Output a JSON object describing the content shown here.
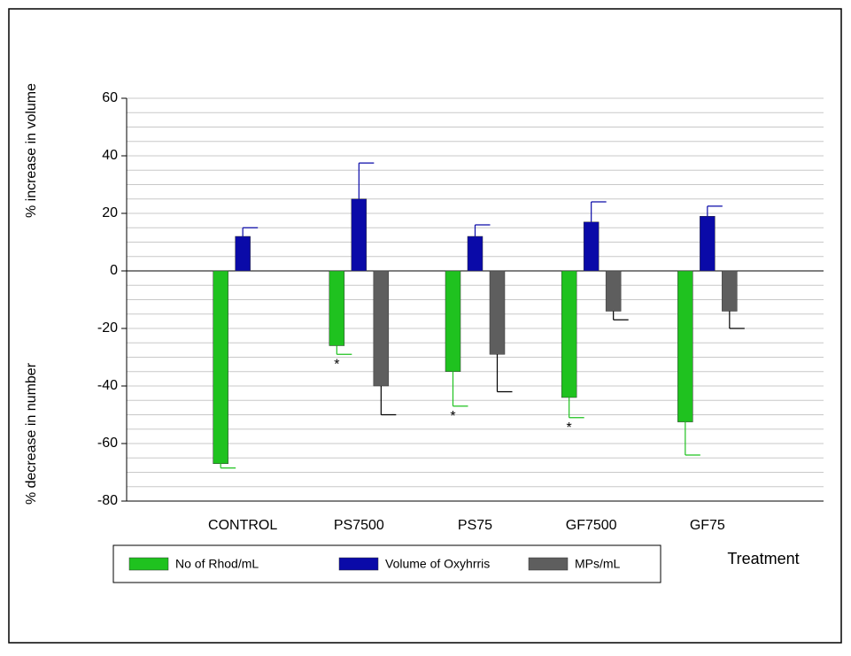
{
  "chart_data": {
    "type": "bar",
    "y_label_upper": "% increase in volume",
    "y_label_lower": "% decrease in number",
    "x_label": "Treatment",
    "categories": [
      "CONTROL",
      "PS7500",
      "PS75",
      "GF7500",
      "GF75"
    ],
    "series": [
      {
        "name": "No of Rhod/mL",
        "color": "#1fc21f",
        "error_color": "#1fc21f",
        "values": [
          -67,
          -26,
          -35,
          -44,
          -52.5
        ],
        "errors": [
          1.5,
          3,
          12,
          7,
          11.5
        ]
      },
      {
        "name": "Volume of Oxyhrris",
        "color": "#0a0aa8",
        "error_color": "#0a0aa8",
        "values": [
          12,
          25,
          12,
          17,
          19
        ],
        "errors": [
          3,
          12.5,
          4,
          7,
          3.5
        ]
      },
      {
        "name": "MPs/mL",
        "color": "#5e5e5e",
        "error_color": "#000000",
        "values": [
          null,
          -40,
          -29,
          -14,
          -14
        ],
        "errors": [
          null,
          10,
          13,
          3,
          6
        ]
      }
    ],
    "annotations": [
      {
        "text": "*",
        "category": 1,
        "series": 0
      },
      {
        "text": "*",
        "category": 2,
        "series": 0
      },
      {
        "text": "*",
        "category": 3,
        "series": 0
      }
    ],
    "ylim": [
      -80,
      60
    ],
    "yticks": [
      -80,
      -60,
      -40,
      -20,
      0,
      20,
      40,
      60
    ],
    "minor_grid_step": 5,
    "grid": true
  }
}
